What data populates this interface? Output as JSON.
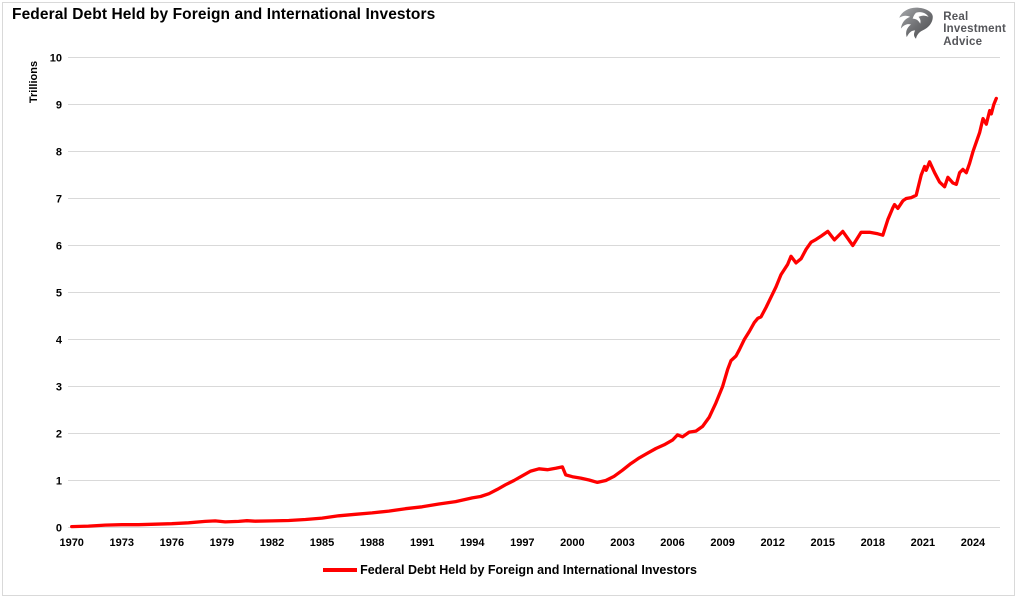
{
  "page": {
    "title": "Federal Debt Held by Foreign and International Investors"
  },
  "logo": {
    "icon": "eagle-icon",
    "lines": [
      "Real",
      "Investment",
      "Advice"
    ]
  },
  "chart_data": {
    "type": "line",
    "title": "Federal Debt Held by Foreign and International Investors",
    "xlabel": "",
    "ylabel": "Trillions",
    "ylim": [
      0,
      10
    ],
    "xlim": [
      1970,
      2025.6
    ],
    "grid": "horizontal",
    "grid_color": "#d9d9d9",
    "y_ticks": [
      0,
      1,
      2,
      3,
      4,
      5,
      6,
      7,
      8,
      9,
      10
    ],
    "x_ticks": [
      1970,
      1973,
      1976,
      1979,
      1982,
      1985,
      1988,
      1991,
      1994,
      1997,
      2000,
      2003,
      2006,
      2009,
      2012,
      2015,
      2018,
      2021,
      2024
    ],
    "legend": {
      "position": "bottom-center",
      "entries": [
        {
          "label": "Federal Debt Held by Foreign and International Investors",
          "color": "#ff0000"
        }
      ]
    },
    "series": [
      {
        "name": "Federal Debt Held by Foreign and International Investors",
        "color": "#ff0000",
        "points": [
          [
            1970,
            0.02
          ],
          [
            1971,
            0.03
          ],
          [
            1972,
            0.05
          ],
          [
            1973,
            0.06
          ],
          [
            1974,
            0.06
          ],
          [
            1975,
            0.07
          ],
          [
            1976,
            0.08
          ],
          [
            1977,
            0.1
          ],
          [
            1978,
            0.13
          ],
          [
            1978.6,
            0.14
          ],
          [
            1979.2,
            0.12
          ],
          [
            1980,
            0.13
          ],
          [
            1980.5,
            0.145
          ],
          [
            1981,
            0.135
          ],
          [
            1982,
            0.14
          ],
          [
            1983,
            0.15
          ],
          [
            1984,
            0.17
          ],
          [
            1985,
            0.2
          ],
          [
            1986,
            0.25
          ],
          [
            1987,
            0.28
          ],
          [
            1988,
            0.31
          ],
          [
            1989,
            0.35
          ],
          [
            1990,
            0.4
          ],
          [
            1991,
            0.44
          ],
          [
            1992,
            0.5
          ],
          [
            1993,
            0.55
          ],
          [
            1994,
            0.63
          ],
          [
            1994.5,
            0.66
          ],
          [
            1995,
            0.72
          ],
          [
            1995.5,
            0.81
          ],
          [
            1996,
            0.91
          ],
          [
            1996.5,
            1.0
          ],
          [
            1997,
            1.1
          ],
          [
            1997.5,
            1.2
          ],
          [
            1998,
            1.25
          ],
          [
            1998.5,
            1.23
          ],
          [
            1999,
            1.26
          ],
          [
            1999.4,
            1.29
          ],
          [
            1999.6,
            1.12
          ],
          [
            2000,
            1.08
          ],
          [
            2000.5,
            1.05
          ],
          [
            2001,
            1.01
          ],
          [
            2001.5,
            0.96
          ],
          [
            2002,
            1.0
          ],
          [
            2002.5,
            1.09
          ],
          [
            2003,
            1.22
          ],
          [
            2003.5,
            1.36
          ],
          [
            2004,
            1.48
          ],
          [
            2004.5,
            1.58
          ],
          [
            2005,
            1.68
          ],
          [
            2005.5,
            1.76
          ],
          [
            2006,
            1.86
          ],
          [
            2006.3,
            1.97
          ],
          [
            2006.6,
            1.93
          ],
          [
            2007,
            2.03
          ],
          [
            2007.4,
            2.05
          ],
          [
            2007.8,
            2.15
          ],
          [
            2008.2,
            2.35
          ],
          [
            2008.6,
            2.65
          ],
          [
            2009,
            3.0
          ],
          [
            2009.3,
            3.36
          ],
          [
            2009.5,
            3.55
          ],
          [
            2009.8,
            3.65
          ],
          [
            2010,
            3.78
          ],
          [
            2010.3,
            4.0
          ],
          [
            2010.6,
            4.17
          ],
          [
            2010.9,
            4.36
          ],
          [
            2011.1,
            4.45
          ],
          [
            2011.3,
            4.48
          ],
          [
            2011.6,
            4.68
          ],
          [
            2011.9,
            4.9
          ],
          [
            2012.2,
            5.12
          ],
          [
            2012.5,
            5.38
          ],
          [
            2012.9,
            5.6
          ],
          [
            2013.1,
            5.77
          ],
          [
            2013.4,
            5.63
          ],
          [
            2013.7,
            5.72
          ],
          [
            2014,
            5.92
          ],
          [
            2014.3,
            6.07
          ],
          [
            2014.6,
            6.13
          ],
          [
            2014.9,
            6.2
          ],
          [
            2015.3,
            6.3
          ],
          [
            2015.7,
            6.12
          ],
          [
            2016.2,
            6.3
          ],
          [
            2016.8,
            6.0
          ],
          [
            2017.3,
            6.28
          ],
          [
            2017.8,
            6.28
          ],
          [
            2018.3,
            6.25
          ],
          [
            2018.6,
            6.22
          ],
          [
            2018.9,
            6.55
          ],
          [
            2019.2,
            6.8
          ],
          [
            2019.3,
            6.87
          ],
          [
            2019.5,
            6.79
          ],
          [
            2019.8,
            6.95
          ],
          [
            2020,
            7.0
          ],
          [
            2020.3,
            7.02
          ],
          [
            2020.6,
            7.07
          ],
          [
            2020.9,
            7.5
          ],
          [
            2021.1,
            7.68
          ],
          [
            2021.2,
            7.6
          ],
          [
            2021.4,
            7.78
          ],
          [
            2021.7,
            7.55
          ],
          [
            2022,
            7.35
          ],
          [
            2022.3,
            7.25
          ],
          [
            2022.5,
            7.45
          ],
          [
            2022.8,
            7.33
          ],
          [
            2023,
            7.3
          ],
          [
            2023.2,
            7.55
          ],
          [
            2023.4,
            7.62
          ],
          [
            2023.6,
            7.55
          ],
          [
            2023.8,
            7.75
          ],
          [
            2024,
            8.0
          ],
          [
            2024.2,
            8.2
          ],
          [
            2024.4,
            8.4
          ],
          [
            2024.6,
            8.7
          ],
          [
            2024.8,
            8.58
          ],
          [
            2025,
            8.87
          ],
          [
            2025.1,
            8.8
          ],
          [
            2025.25,
            9.0
          ],
          [
            2025.4,
            9.13
          ]
        ]
      }
    ]
  }
}
